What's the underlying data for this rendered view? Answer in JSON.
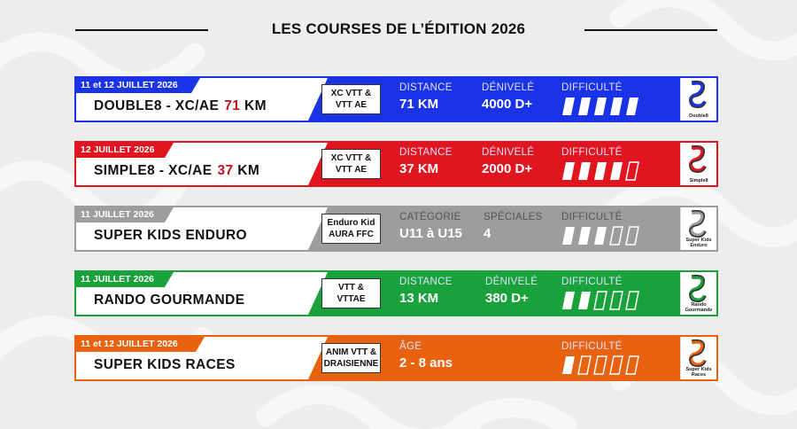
{
  "header": {
    "title": "LES COURSES DE L’ÉDITION 2026"
  },
  "courses": [
    {
      "date": "11 et 12 JUILLET 2026",
      "name": "DOUBLE8 - XC/AE",
      "km": "71",
      "km_unit": "KM",
      "type": [
        "XC VTT &",
        "VTT AE"
      ],
      "stat1_label": "DISTANCE",
      "stat1_value": "71 KM",
      "stat2_label": "DÉNIVELÉ",
      "stat2_value": "4000 D+",
      "difficulty_label": "DIFFICULTÉ",
      "difficulty": 5,
      "color": "#1b33e6",
      "km_color": "#c1121f",
      "logo_caption": "Double8"
    },
    {
      "date": "12 JUILLET 2026",
      "name": "SIMPLE8 - XC/AE",
      "km": "37",
      "km_unit": "KM",
      "type": [
        "XC VTT &",
        "VTT AE"
      ],
      "stat1_label": "DISTANCE",
      "stat1_value": "37 KM",
      "stat2_label": "DÉNIVELÉ",
      "stat2_value": "2000 D+",
      "difficulty_label": "DIFFICULTÉ",
      "difficulty": 4,
      "color": "#e0151f",
      "km_color": "#c1121f",
      "logo_caption": "Simple8"
    },
    {
      "date": "11 JUILLET 2026",
      "name": "SUPER KIDS ENDURO",
      "km": "",
      "km_unit": "",
      "type": [
        "Enduro Kid",
        "AURA FFC"
      ],
      "stat1_label": "CATÉGORIE",
      "stat1_value": "U11 à U15",
      "stat2_label": "SPÉCIALES",
      "stat2_value": "4",
      "difficulty_label": "DIFFICULTÉ",
      "difficulty": 3,
      "color": "#9d9d9d",
      "km_color": "#111111",
      "logo_caption": "Super Kids Enduro"
    },
    {
      "date": "11 JUILLET 2026",
      "name": "RANDO GOURMANDE",
      "km": "",
      "km_unit": "",
      "type": [
        "VTT &",
        "VTTAE"
      ],
      "stat1_label": "DISTANCE",
      "stat1_value": "13 KM",
      "stat2_label": "DÉNIVELÉ",
      "stat2_value": "380 D+",
      "difficulty_label": "DIFFICULTÉ",
      "difficulty": 2,
      "color": "#19a23c",
      "km_color": "#111111",
      "logo_caption": "Rando Gourmande"
    },
    {
      "date": "11  et 12 JUILLET 2026",
      "name": "SUPER KIDS RACES",
      "km": "",
      "km_unit": "",
      "type": [
        "ANIM VTT &",
        "DRAISIENNE"
      ],
      "stat1_label": "ÂGE",
      "stat1_value": "2 - 8 ans",
      "stat2_label": "",
      "stat2_value": "",
      "difficulty_label": "DIFFICULTÉ",
      "difficulty": 1,
      "color": "#e8620f",
      "km_color": "#111111",
      "logo_caption": "Super Kids Races"
    }
  ]
}
